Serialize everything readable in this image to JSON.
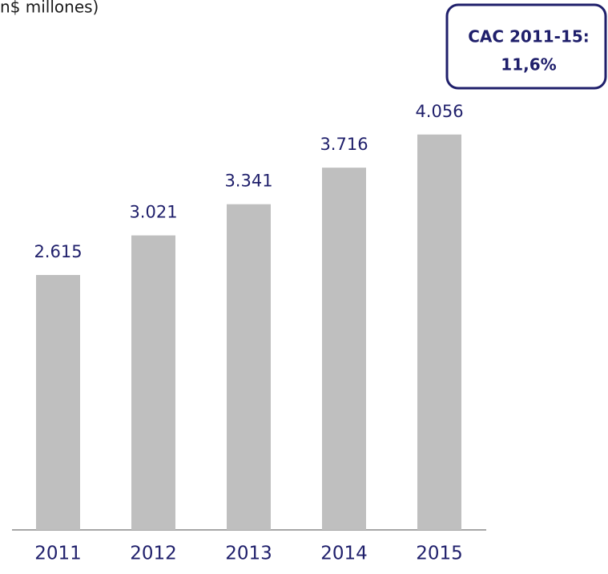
{
  "chart_data": {
    "type": "bar",
    "title": "n$ millones)",
    "categories": [
      "2011",
      "2012",
      "2013",
      "2014",
      "2015"
    ],
    "values": [
      2615,
      3021,
      3341,
      3716,
      4056
    ],
    "value_labels": [
      "2.615",
      "3.021",
      "3.341",
      "3.716",
      "4.056"
    ],
    "color": "#bfbfbf",
    "ylim": [
      0,
      5000
    ],
    "annotation": [
      "CAC 2011-15:",
      "11,6%"
    ]
  }
}
